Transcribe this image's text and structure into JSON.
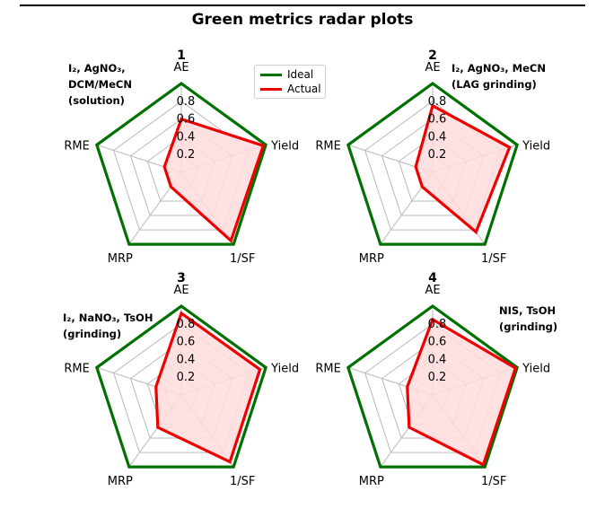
{
  "figure": {
    "title": "Green metrics radar plots"
  },
  "legend": [
    {
      "label": "Ideal",
      "color": "#007000"
    },
    {
      "label": "Actual",
      "color": "#ee0000"
    }
  ],
  "colors": {
    "ideal": "#007000",
    "actual": "#ee0000",
    "actual_fill": "#ffdcdc",
    "grid": "#b8b8b8"
  },
  "chart_data": [
    {
      "type": "radar",
      "title": "1",
      "conditions": [
        "I₂, AgNO₃,",
        "DCM/MeCN",
        "(solution)"
      ],
      "axes": [
        "AE",
        "Yield",
        "1/SF",
        "MRP",
        "RME"
      ],
      "radial_ticks": [
        "0.2",
        "0.4",
        "0.6",
        "0.8"
      ],
      "rlim": [
        0,
        1
      ],
      "series": [
        {
          "name": "Ideal",
          "values": [
            1,
            1,
            1,
            1,
            1
          ]
        },
        {
          "name": "Actual",
          "values": [
            0.6,
            0.97,
            0.95,
            0.2,
            0.2
          ]
        }
      ]
    },
    {
      "type": "radar",
      "title": "2",
      "conditions": [
        "I₂, AgNO₃, MeCN",
        "(LAG grinding)"
      ],
      "axes": [
        "AE",
        "Yield",
        "1/SF",
        "MRP",
        "RME"
      ],
      "radial_ticks": [
        "0.2",
        "0.4",
        "0.6",
        "0.8"
      ],
      "rlim": [
        0,
        1
      ],
      "series": [
        {
          "name": "Ideal",
          "values": [
            1,
            1,
            1,
            1,
            1
          ]
        },
        {
          "name": "Actual",
          "values": [
            0.75,
            0.91,
            0.83,
            0.2,
            0.2
          ]
        }
      ]
    },
    {
      "type": "radar",
      "title": "3",
      "conditions": [
        "I₂, NaNO₃, TsOH",
        "(grinding)"
      ],
      "axes": [
        "AE",
        "Yield",
        "1/SF",
        "MRP",
        "RME"
      ],
      "radial_ticks": [
        "0.2",
        "0.4",
        "0.6",
        "0.8"
      ],
      "rlim": [
        0,
        1
      ],
      "series": [
        {
          "name": "Ideal",
          "values": [
            1,
            1,
            1,
            1,
            1
          ]
        },
        {
          "name": "Actual",
          "values": [
            0.92,
            0.93,
            0.93,
            0.45,
            0.3
          ]
        }
      ]
    },
    {
      "type": "radar",
      "title": "4",
      "conditions": [
        "NIS, TsOH",
        "(grinding)"
      ],
      "axes": [
        "AE",
        "Yield",
        "1/SF",
        "MRP",
        "RME"
      ],
      "radial_ticks": [
        "0.2",
        "0.4",
        "0.6",
        "0.8"
      ],
      "rlim": [
        0,
        1
      ],
      "series": [
        {
          "name": "Ideal",
          "values": [
            1,
            1,
            1,
            1,
            1
          ]
        },
        {
          "name": "Actual",
          "values": [
            0.85,
            0.98,
            0.97,
            0.45,
            0.3
          ]
        }
      ]
    }
  ]
}
